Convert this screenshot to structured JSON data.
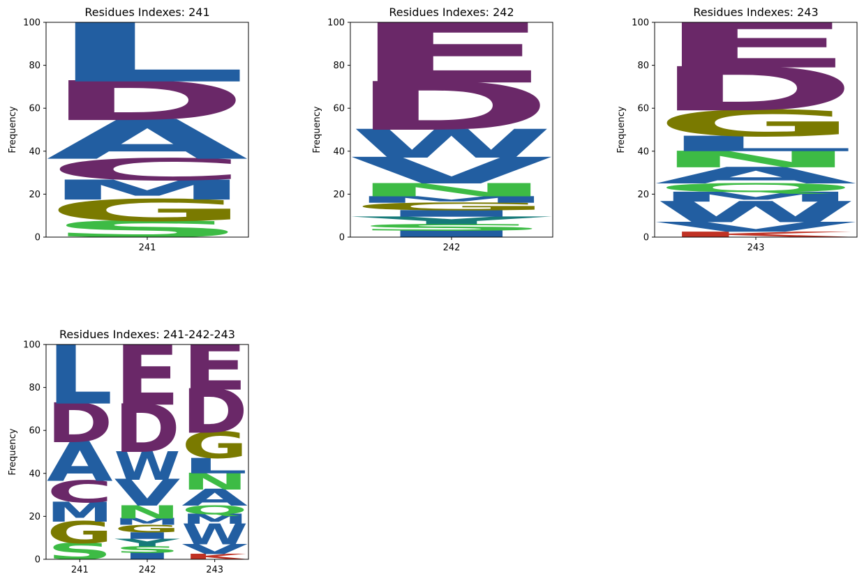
{
  "chart_data": [
    {
      "type": "sequence-logo",
      "title": "Residues Indexes: 241",
      "ylabel": "Frequency",
      "ylim": [
        0,
        100
      ],
      "yticks": [
        0,
        20,
        40,
        60,
        80,
        100
      ],
      "positions": [
        {
          "label": "241",
          "stack": [
            {
              "residue": "S",
              "freq": 7.5,
              "color": "#3DBB45"
            },
            {
              "residue": "G",
              "freq": 10.0,
              "color": "#7A7A00"
            },
            {
              "residue": "M",
              "freq": 9.0,
              "color": "#225EA1"
            },
            {
              "residue": "C",
              "freq": 10.0,
              "color": "#6A2868"
            },
            {
              "residue": "A",
              "freq": 18.0,
              "color": "#225EA1"
            },
            {
              "residue": "D",
              "freq": 18.0,
              "color": "#6A2868"
            },
            {
              "residue": "L",
              "freq": 27.5,
              "color": "#225EA1"
            }
          ]
        }
      ]
    },
    {
      "type": "sequence-logo",
      "title": "Residues Indexes: 242",
      "ylabel": "Frequency",
      "ylim": [
        0,
        100
      ],
      "yticks": [
        0,
        20,
        40,
        60,
        80,
        100
      ],
      "positions": [
        {
          "label": "242",
          "stack": [
            {
              "residue": "I",
              "freq": 3.0,
              "color": "#225EA1"
            },
            {
              "residue": "S",
              "freq": 3.0,
              "color": "#3DBB45"
            },
            {
              "residue": "Y",
              "freq": 3.5,
              "color": "#167A79"
            },
            {
              "residue": "I",
              "freq": 3.0,
              "color": "#225EA1"
            },
            {
              "residue": "G",
              "freq": 3.5,
              "color": "#7A7A00"
            },
            {
              "residue": "M",
              "freq": 3.0,
              "color": "#225EA1"
            },
            {
              "residue": "N",
              "freq": 6.0,
              "color": "#3DBB45"
            },
            {
              "residue": "V",
              "freq": 12.0,
              "color": "#225EA1"
            },
            {
              "residue": "W",
              "freq": 13.0,
              "color": "#225EA1"
            },
            {
              "residue": "D",
              "freq": 22.0,
              "color": "#6A2868"
            },
            {
              "residue": "E",
              "freq": 28.0,
              "color": "#6A2868"
            }
          ]
        }
      ]
    },
    {
      "type": "sequence-logo",
      "title": "Residues Indexes: 243",
      "ylabel": "Frequency",
      "ylim": [
        0,
        100
      ],
      "yticks": [
        0,
        20,
        40,
        60,
        80,
        100
      ],
      "positions": [
        {
          "label": "243",
          "stack": [
            {
              "residue": "K",
              "freq": 2.5,
              "color": "#C03224"
            },
            {
              "residue": "V",
              "freq": 4.5,
              "color": "#225EA1"
            },
            {
              "residue": "W",
              "freq": 9.5,
              "color": "#225EA1"
            },
            {
              "residue": "M",
              "freq": 4.5,
              "color": "#225EA1"
            },
            {
              "residue": "Q",
              "freq": 4.0,
              "color": "#3DBB45"
            },
            {
              "residue": "A",
              "freq": 7.5,
              "color": "#225EA1"
            },
            {
              "residue": "N",
              "freq": 7.5,
              "color": "#3DBB45"
            },
            {
              "residue": "L",
              "freq": 7.0,
              "color": "#225EA1"
            },
            {
              "residue": "G",
              "freq": 12.0,
              "color": "#7A7A00"
            },
            {
              "residue": "D",
              "freq": 20.0,
              "color": "#6A2868"
            },
            {
              "residue": "E",
              "freq": 21.5,
              "color": "#6A2868"
            }
          ]
        }
      ]
    },
    {
      "type": "sequence-logo",
      "title": "Residues Indexes: 241-242-243",
      "ylabel": "Frequency",
      "ylim": [
        0,
        100
      ],
      "yticks": [
        0,
        20,
        40,
        60,
        80,
        100
      ],
      "positions": [
        {
          "label": "241",
          "stack": [
            {
              "residue": "S",
              "freq": 7.5,
              "color": "#3DBB45"
            },
            {
              "residue": "G",
              "freq": 10.0,
              "color": "#7A7A00"
            },
            {
              "residue": "M",
              "freq": 9.0,
              "color": "#225EA1"
            },
            {
              "residue": "C",
              "freq": 10.0,
              "color": "#6A2868"
            },
            {
              "residue": "A",
              "freq": 18.0,
              "color": "#225EA1"
            },
            {
              "residue": "D",
              "freq": 18.0,
              "color": "#6A2868"
            },
            {
              "residue": "L",
              "freq": 27.5,
              "color": "#225EA1"
            }
          ]
        },
        {
          "label": "242",
          "stack": [
            {
              "residue": "I",
              "freq": 3.0,
              "color": "#225EA1"
            },
            {
              "residue": "S",
              "freq": 3.0,
              "color": "#3DBB45"
            },
            {
              "residue": "Y",
              "freq": 3.5,
              "color": "#167A79"
            },
            {
              "residue": "I",
              "freq": 3.0,
              "color": "#225EA1"
            },
            {
              "residue": "G",
              "freq": 3.5,
              "color": "#7A7A00"
            },
            {
              "residue": "M",
              "freq": 3.0,
              "color": "#225EA1"
            },
            {
              "residue": "N",
              "freq": 6.0,
              "color": "#3DBB45"
            },
            {
              "residue": "V",
              "freq": 12.0,
              "color": "#225EA1"
            },
            {
              "residue": "W",
              "freq": 13.0,
              "color": "#225EA1"
            },
            {
              "residue": "D",
              "freq": 22.0,
              "color": "#6A2868"
            },
            {
              "residue": "E",
              "freq": 28.0,
              "color": "#6A2868"
            }
          ]
        },
        {
          "label": "243",
          "stack": [
            {
              "residue": "K",
              "freq": 2.5,
              "color": "#C03224"
            },
            {
              "residue": "V",
              "freq": 4.5,
              "color": "#225EA1"
            },
            {
              "residue": "W",
              "freq": 9.5,
              "color": "#225EA1"
            },
            {
              "residue": "M",
              "freq": 4.5,
              "color": "#225EA1"
            },
            {
              "residue": "Q",
              "freq": 4.0,
              "color": "#3DBB45"
            },
            {
              "residue": "A",
              "freq": 7.5,
              "color": "#225EA1"
            },
            {
              "residue": "N",
              "freq": 7.5,
              "color": "#3DBB45"
            },
            {
              "residue": "L",
              "freq": 7.0,
              "color": "#225EA1"
            },
            {
              "residue": "G",
              "freq": 12.0,
              "color": "#7A7A00"
            },
            {
              "residue": "D",
              "freq": 20.0,
              "color": "#6A2868"
            },
            {
              "residue": "E",
              "freq": 21.5,
              "color": "#6A2868"
            }
          ]
        }
      ]
    }
  ]
}
